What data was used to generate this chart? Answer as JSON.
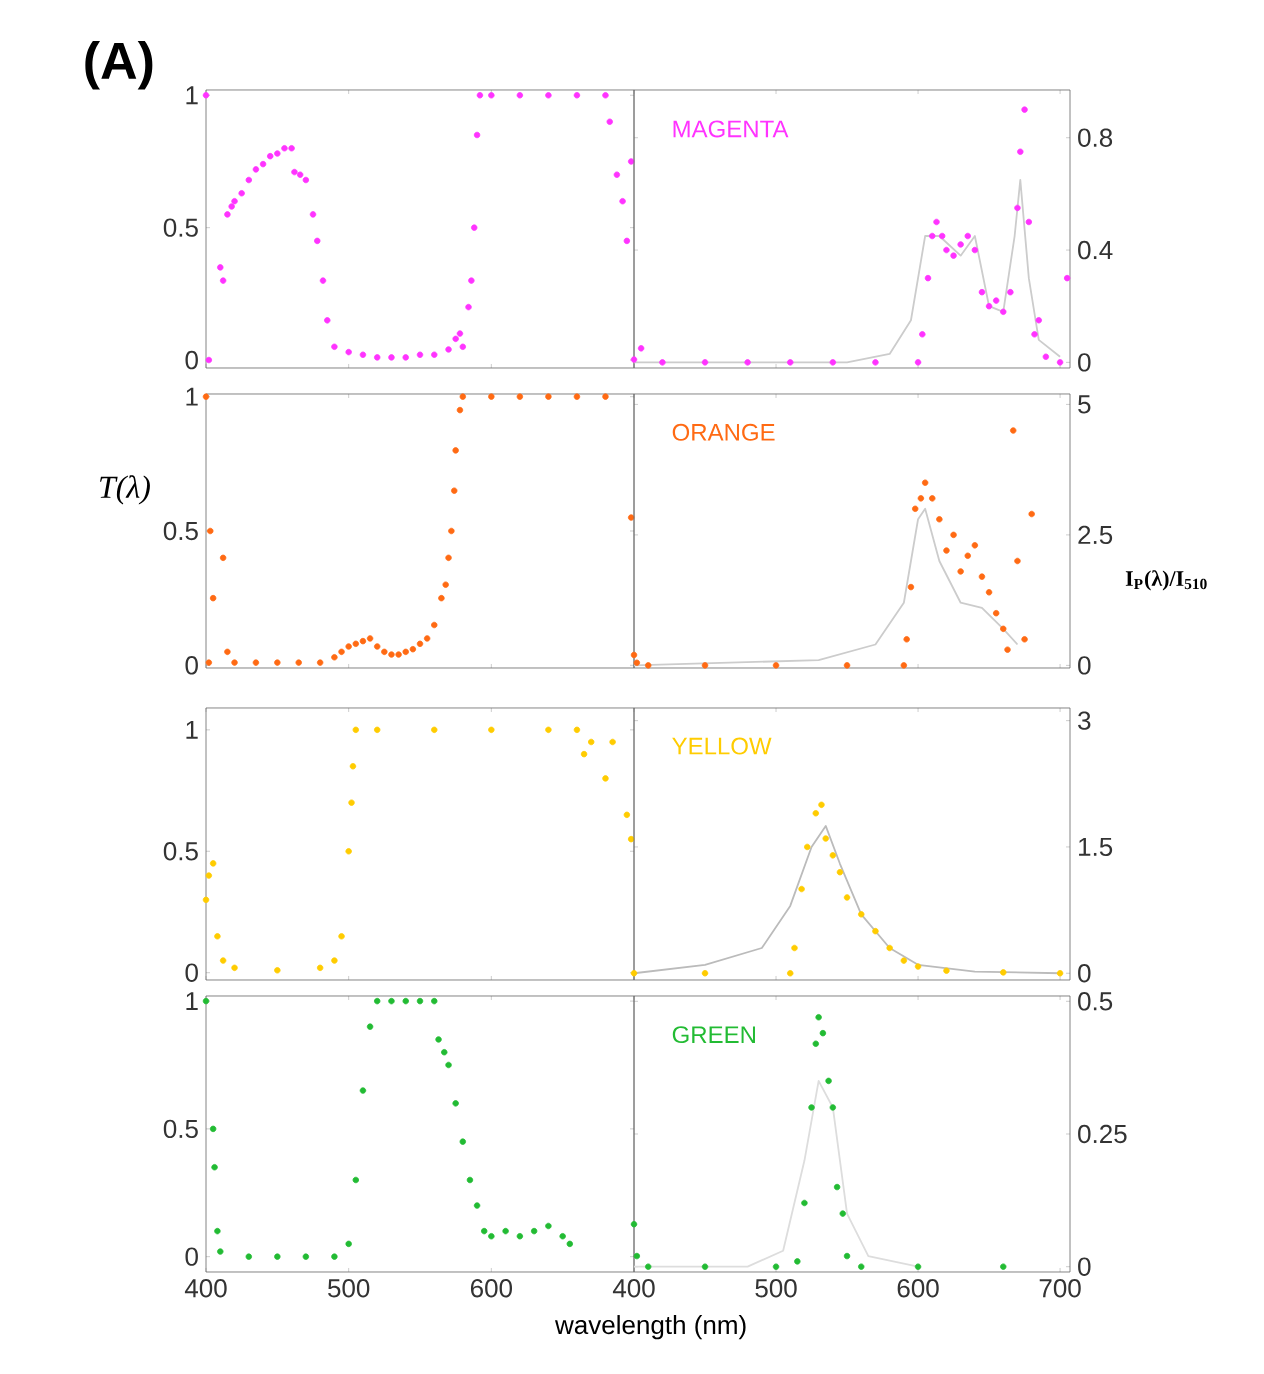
{
  "chart_data": [
    {
      "type": "scatter",
      "title": "(A)",
      "xlim": [
        400,
        700
      ],
      "ylim": [
        -0.03,
        1.02
      ],
      "xticks": [
        400,
        500,
        600
      ],
      "yticks": [
        0,
        0.5,
        1
      ],
      "tick_labels": "y",
      "series": [
        {
          "marker": "circle",
          "color": "#ff33ff",
          "x": [
            400,
            402,
            410,
            412,
            415,
            418,
            420,
            425,
            430,
            435,
            440,
            445,
            450,
            455,
            460,
            462,
            466,
            470,
            475,
            478,
            482,
            485,
            490,
            500,
            510,
            520,
            530,
            540,
            550,
            560,
            570,
            575,
            578,
            580,
            584,
            586,
            588,
            590,
            592,
            600,
            620,
            640,
            660,
            680,
            683,
            688,
            692,
            695,
            698
          ],
          "values": [
            1.0,
            0.0,
            0.35,
            0.3,
            0.55,
            0.58,
            0.6,
            0.63,
            0.68,
            0.72,
            0.74,
            0.77,
            0.78,
            0.8,
            0.8,
            0.71,
            0.7,
            0.68,
            0.55,
            0.45,
            0.3,
            0.15,
            0.05,
            0.03,
            0.02,
            0.01,
            0.01,
            0.01,
            0.02,
            0.02,
            0.04,
            0.08,
            0.1,
            0.05,
            0.2,
            0.3,
            0.5,
            0.85,
            1.0,
            1.0,
            1.0,
            1.0,
            1.0,
            1.0,
            0.9,
            0.7,
            0.6,
            0.45,
            0.75
          ]
        }
      ]
    },
    {
      "type": "scatter",
      "xlim": [
        400,
        707
      ],
      "ylim": [
        -0.02,
        0.97
      ],
      "xticks": [
        400,
        500,
        600,
        700
      ],
      "yticks": [
        0,
        0.4,
        0.8
      ],
      "tick_labels": "y",
      "series": [
        {
          "type": "line",
          "marker": "none",
          "color": "#cccccc",
          "x": [
            400,
            550,
            580,
            595,
            605,
            615,
            630,
            640,
            650,
            660,
            668,
            672,
            678,
            685,
            700
          ],
          "values": [
            0,
            0,
            0.03,
            0.15,
            0.45,
            0.45,
            0.38,
            0.45,
            0.2,
            0.18,
            0.45,
            0.65,
            0.3,
            0.08,
            0.02
          ]
        },
        {
          "name": "MAGENTA",
          "marker": "circle",
          "color": "#ff33ff",
          "x": [
            400,
            405,
            420,
            450,
            480,
            510,
            540,
            570,
            600,
            603,
            607,
            610,
            613,
            617,
            620,
            625,
            630,
            635,
            640,
            645,
            650,
            655,
            660,
            665,
            670,
            672,
            675,
            678,
            682,
            685,
            690,
            700,
            705
          ],
          "values": [
            0.01,
            0.05,
            0,
            0,
            0,
            0,
            0,
            0,
            0,
            0.1,
            0.3,
            0.45,
            0.5,
            0.45,
            0.4,
            0.38,
            0.42,
            0.45,
            0.4,
            0.25,
            0.2,
            0.22,
            0.18,
            0.25,
            0.55,
            0.75,
            0.9,
            0.5,
            0.1,
            0.15,
            0.02,
            0.0,
            0.3
          ]
        }
      ]
    },
    {
      "type": "scatter",
      "ylabel": "T(λ)",
      "xlim": [
        400,
        700
      ],
      "ylim": [
        -0.01,
        1.01
      ],
      "xticks": [
        400,
        500,
        600
      ],
      "yticks": [
        0,
        0.5,
        1
      ],
      "tick_labels": "y",
      "series": [
        {
          "marker": "circle",
          "color": "#ff6a13",
          "x": [
            400,
            402,
            403,
            405,
            412,
            415,
            420,
            435,
            450,
            465,
            480,
            490,
            495,
            500,
            505,
            510,
            515,
            520,
            525,
            530,
            535,
            540,
            545,
            550,
            555,
            560,
            565,
            568,
            570,
            572,
            574,
            575,
            578,
            580,
            600,
            620,
            640,
            660,
            680,
            698
          ],
          "values": [
            1.0,
            0.01,
            0.5,
            0.25,
            0.4,
            0.05,
            0.01,
            0.01,
            0.01,
            0.01,
            0.01,
            0.03,
            0.05,
            0.07,
            0.08,
            0.09,
            0.1,
            0.07,
            0.05,
            0.04,
            0.04,
            0.05,
            0.06,
            0.08,
            0.1,
            0.15,
            0.25,
            0.3,
            0.4,
            0.5,
            0.65,
            0.8,
            0.95,
            1.0,
            1.0,
            1.0,
            1.0,
            1.0,
            1.0,
            0.55
          ]
        }
      ]
    },
    {
      "type": "scatter",
      "ylabel": "I$_{P}$(λ)/I$_{510}$",
      "xlim": [
        400,
        707
      ],
      "ylim": [
        -0.05,
        5.2
      ],
      "xticks": [
        400,
        500,
        600,
        700
      ],
      "yticks": [
        0,
        2.5,
        5
      ],
      "tick_labels": "y",
      "series": [
        {
          "type": "line",
          "marker": "none",
          "color": "#cccccc",
          "x": [
            400,
            530,
            570,
            590,
            600,
            605,
            615,
            630,
            645,
            660,
            670
          ],
          "values": [
            0,
            0.1,
            0.4,
            1.2,
            2.8,
            3.0,
            2.0,
            1.2,
            1.1,
            0.7,
            0.4
          ]
        },
        {
          "name": "ORANGE",
          "marker": "circle",
          "color": "#ff6a13",
          "x": [
            400,
            402,
            410,
            450,
            500,
            550,
            590,
            592,
            595,
            598,
            602,
            605,
            610,
            615,
            620,
            625,
            630,
            635,
            640,
            645,
            650,
            655,
            660,
            663,
            667,
            670,
            675,
            680
          ],
          "values": [
            0.2,
            0.05,
            0,
            0,
            0,
            0,
            0,
            0.5,
            1.5,
            3.0,
            3.2,
            3.5,
            3.2,
            2.8,
            2.2,
            2.5,
            1.8,
            2.1,
            2.3,
            1.7,
            1.4,
            1.0,
            0.7,
            0.3,
            4.5,
            2.0,
            0.5,
            2.9
          ]
        }
      ]
    },
    {
      "type": "scatter",
      "xlim": [
        400,
        700
      ],
      "ylim": [
        -0.03,
        1.09
      ],
      "xticks": [
        400,
        500,
        600
      ],
      "yticks": [
        0,
        0.5,
        1
      ],
      "tick_labels": "y",
      "series": [
        {
          "marker": "circle",
          "color": "#ffcc00",
          "x": [
            400,
            402,
            405,
            408,
            412,
            420,
            450,
            480,
            490,
            495,
            500,
            502,
            503,
            505,
            520,
            560,
            600,
            640,
            660,
            665,
            670,
            680,
            685,
            695,
            698
          ],
          "values": [
            0.3,
            0.4,
            0.45,
            0.15,
            0.05,
            0.02,
            0.01,
            0.02,
            0.05,
            0.15,
            0.5,
            0.7,
            0.85,
            1.0,
            1.0,
            1.0,
            1.0,
            1.0,
            1.0,
            0.9,
            0.95,
            0.8,
            0.95,
            0.65,
            0.55
          ]
        }
      ]
    },
    {
      "type": "scatter",
      "xlim": [
        400,
        707
      ],
      "ylim": [
        -0.08,
        3.15
      ],
      "xticks": [
        400,
        500,
        600,
        700
      ],
      "yticks": [
        0,
        1.5,
        3
      ],
      "tick_labels": "y",
      "series": [
        {
          "type": "line",
          "marker": "none",
          "color": "#bbbbbb",
          "x": [
            400,
            450,
            490,
            510,
            525,
            535,
            545,
            560,
            580,
            600,
            640,
            700
          ],
          "values": [
            0,
            0.1,
            0.3,
            0.8,
            1.5,
            1.75,
            1.3,
            0.7,
            0.3,
            0.1,
            0.02,
            0
          ]
        },
        {
          "name": "YELLOW",
          "marker": "circle",
          "color": "#ffcc00",
          "x": [
            400,
            450,
            510,
            513,
            518,
            522,
            528,
            532,
            535,
            540,
            545,
            550,
            560,
            570,
            580,
            590,
            600,
            620,
            660,
            700
          ],
          "values": [
            0,
            0,
            0,
            0.3,
            1.0,
            1.5,
            1.9,
            2.0,
            1.6,
            1.4,
            1.2,
            0.9,
            0.7,
            0.5,
            0.3,
            0.15,
            0.08,
            0.03,
            0.01,
            0
          ]
        }
      ]
    },
    {
      "type": "scatter",
      "xlabel": "wavelength (nm)",
      "xlim": [
        400,
        700
      ],
      "ylim": [
        -0.06,
        1.02
      ],
      "xticks": [
        400,
        500,
        600
      ],
      "yticks": [
        0,
        0.5,
        1
      ],
      "series": [
        {
          "marker": "circle",
          "color": "#22bb33",
          "x": [
            400,
            405,
            406,
            408,
            410,
            430,
            450,
            470,
            490,
            500,
            505,
            510,
            515,
            520,
            530,
            540,
            550,
            560,
            563,
            567,
            570,
            575,
            580,
            585,
            590,
            595,
            600,
            610,
            620,
            630,
            640,
            650,
            655
          ],
          "values": [
            1.0,
            0.5,
            0.35,
            0.1,
            0.02,
            0,
            0,
            0,
            0,
            0.05,
            0.3,
            0.65,
            0.9,
            1.0,
            1.0,
            1.0,
            1.0,
            1.0,
            0.85,
            0.8,
            0.75,
            0.6,
            0.45,
            0.3,
            0.2,
            0.1,
            0.08,
            0.1,
            0.08,
            0.1,
            0.12,
            0.08,
            0.05
          ]
        }
      ]
    },
    {
      "type": "scatter",
      "xlim": [
        400,
        707
      ],
      "ylim": [
        -0.01,
        0.51
      ],
      "xticks": [
        400,
        500,
        600,
        700
      ],
      "yticks": [
        0,
        0.25,
        0.5
      ],
      "series": [
        {
          "type": "line",
          "marker": "none",
          "color": "#dddddd",
          "x": [
            400,
            480,
            505,
            520,
            530,
            540,
            550,
            565,
            600
          ],
          "values": [
            0,
            0,
            0.03,
            0.2,
            0.35,
            0.3,
            0.1,
            0.02,
            0
          ]
        },
        {
          "name": "GREEN",
          "marker": "circle",
          "color": "#22bb33",
          "x": [
            400,
            402,
            410,
            450,
            500,
            515,
            520,
            525,
            528,
            530,
            533,
            537,
            540,
            543,
            547,
            550,
            560,
            600,
            660
          ],
          "values": [
            0.08,
            0.02,
            0,
            0,
            0,
            0.01,
            0.12,
            0.3,
            0.42,
            0.47,
            0.44,
            0.35,
            0.3,
            0.15,
            0.1,
            0.02,
            0,
            0,
            0
          ]
        }
      ]
    }
  ]
}
